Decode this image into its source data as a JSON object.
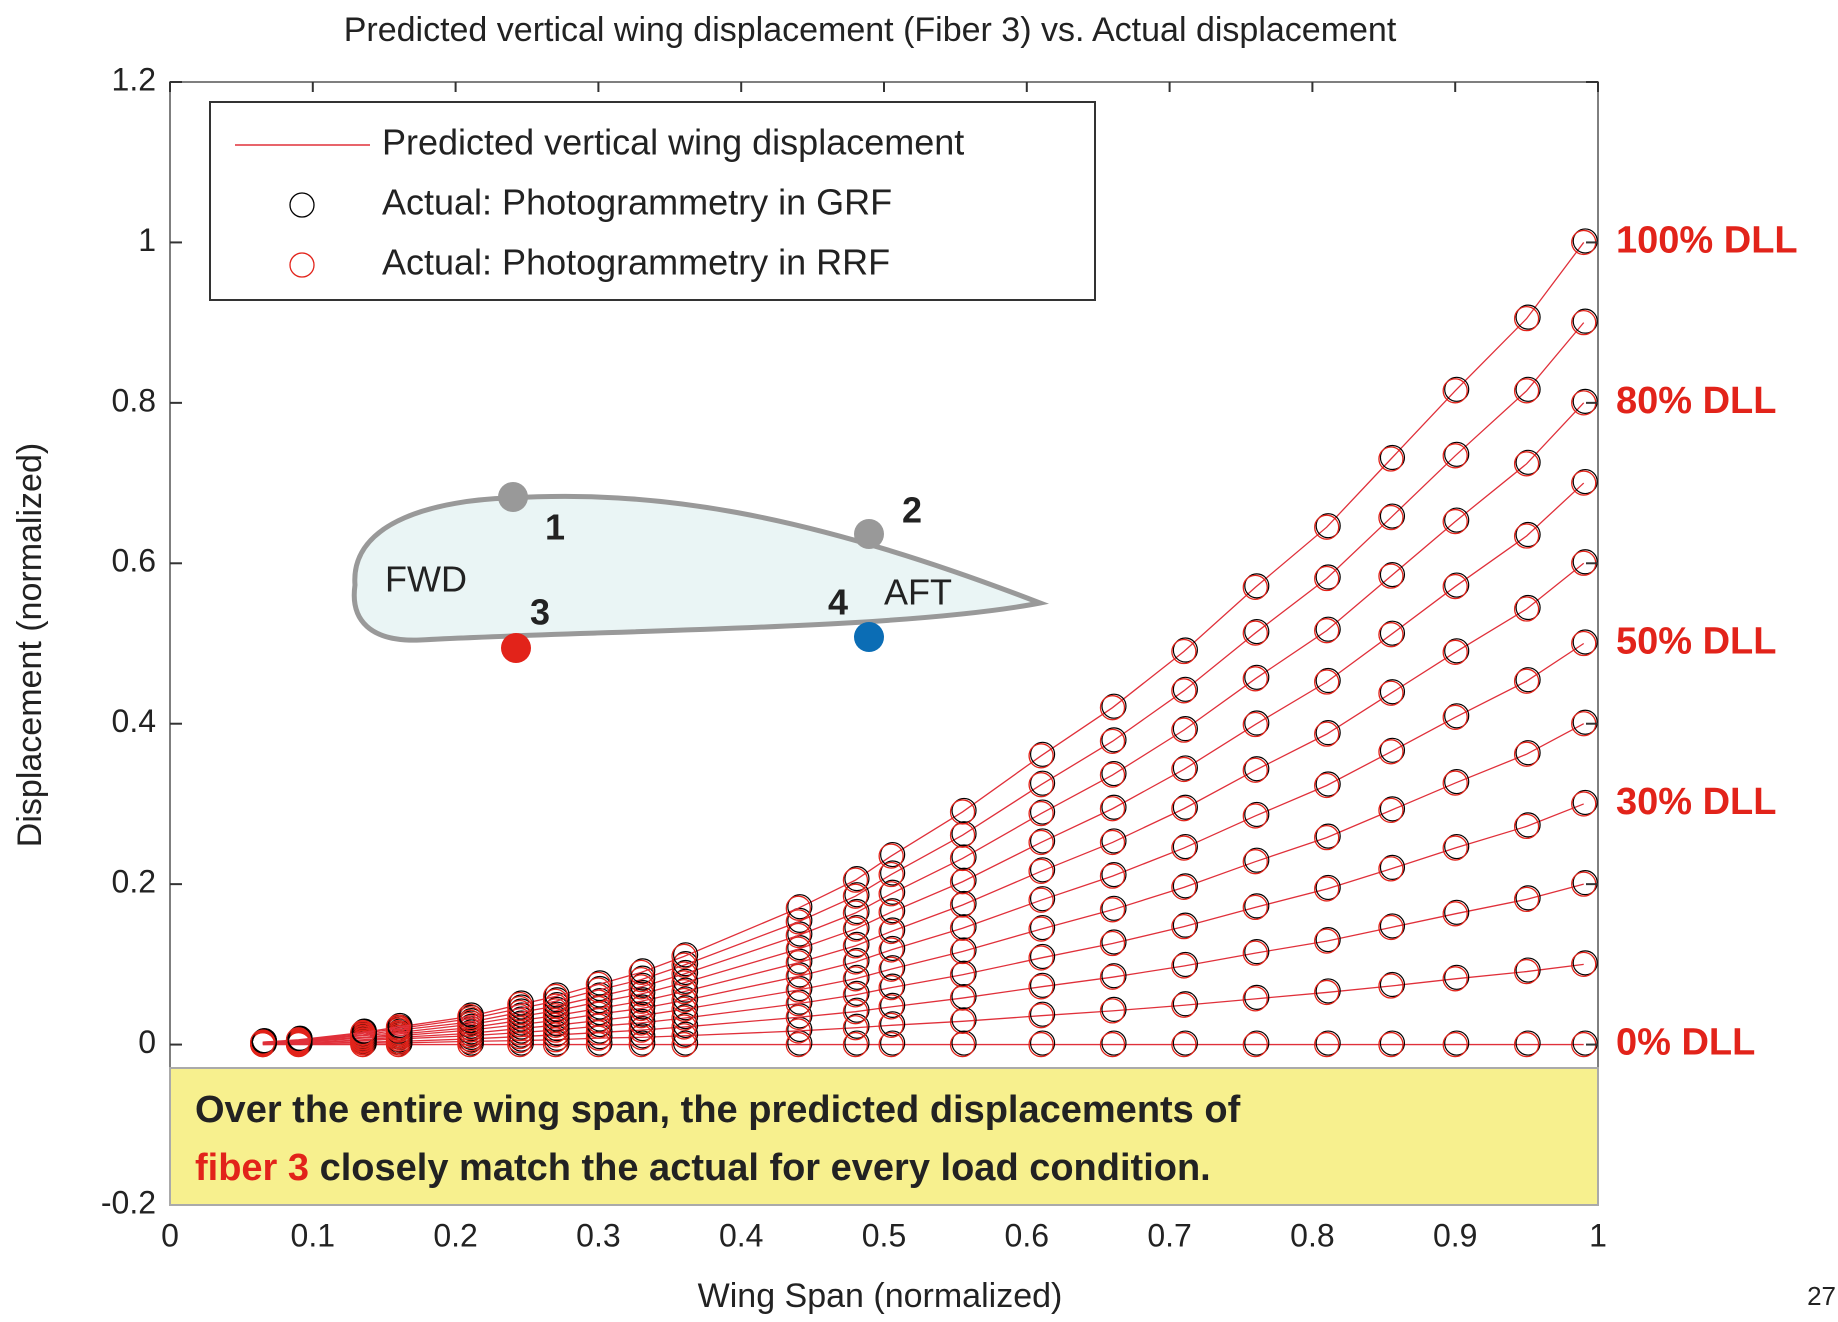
{
  "chart_data": {
    "type": "line",
    "title": "Predicted vertical wing displacement (Fiber 3) vs. Actual displacement",
    "xlabel": "Wing Span (normalized)",
    "ylabel": "Displacement (normalized)",
    "xlim": [
      0,
      1
    ],
    "ylim": [
      -0.2,
      1.2
    ],
    "xticks": [
      0,
      0.1,
      0.2,
      0.3,
      0.4,
      0.5,
      0.6,
      0.7,
      0.8,
      0.9,
      1
    ],
    "yticks": [
      -0.2,
      0,
      0.2,
      0.4,
      0.6,
      0.8,
      1,
      1.2
    ],
    "legend": [
      {
        "name": "Predicted vertical wing displacement",
        "color": "#e0303a",
        "marker": "line"
      },
      {
        "name": "Actual: Photogrammetry in GRF",
        "color": "#000000",
        "marker": "circle"
      },
      {
        "name": "Actual: Photogrammetry in RRF",
        "color": "#e2231a",
        "marker": "circle"
      }
    ],
    "label_color": "#e2231a",
    "x": [
      0.065,
      0.09,
      0.135,
      0.16,
      0.21,
      0.245,
      0.27,
      0.3,
      0.33,
      0.36,
      0.44,
      0.48,
      0.505,
      0.555,
      0.61,
      0.66,
      0.71,
      0.76,
      0.81,
      0.855,
      0.9,
      0.95,
      0.99
    ],
    "series": [
      {
        "label": "0% DLL",
        "values": [
          0,
          0,
          0,
          0,
          0,
          0,
          0,
          0,
          0,
          0,
          0,
          0,
          0,
          0,
          0,
          0,
          0,
          0,
          0,
          0,
          0,
          0,
          0
        ]
      },
      {
        "label": null,
        "values": [
          0,
          0.001,
          0.002,
          0.002,
          0.004,
          0.005,
          0.006,
          0.008,
          0.009,
          0.011,
          0.017,
          0.021,
          0.024,
          0.029,
          0.036,
          0.042,
          0.049,
          0.057,
          0.065,
          0.073,
          0.082,
          0.091,
          0.1
        ]
      },
      {
        "label": null,
        "values": [
          0.001,
          0.001,
          0.003,
          0.004,
          0.007,
          0.01,
          0.012,
          0.015,
          0.018,
          0.022,
          0.034,
          0.041,
          0.047,
          0.058,
          0.072,
          0.084,
          0.098,
          0.114,
          0.129,
          0.146,
          0.163,
          0.181,
          0.2
        ]
      },
      {
        "label": "30% DLL",
        "values": [
          0.001,
          0.002,
          0.005,
          0.007,
          0.011,
          0.015,
          0.018,
          0.023,
          0.027,
          0.033,
          0.051,
          0.062,
          0.071,
          0.087,
          0.108,
          0.126,
          0.147,
          0.171,
          0.194,
          0.219,
          0.245,
          0.272,
          0.3
        ]
      },
      {
        "label": null,
        "values": [
          0.001,
          0.002,
          0.006,
          0.009,
          0.014,
          0.02,
          0.024,
          0.03,
          0.036,
          0.044,
          0.068,
          0.082,
          0.094,
          0.116,
          0.144,
          0.168,
          0.196,
          0.228,
          0.258,
          0.292,
          0.326,
          0.362,
          0.4
        ]
      },
      {
        "label": "50% DLL",
        "values": [
          0.002,
          0.003,
          0.008,
          0.011,
          0.018,
          0.025,
          0.03,
          0.038,
          0.045,
          0.055,
          0.085,
          0.103,
          0.118,
          0.145,
          0.18,
          0.21,
          0.245,
          0.285,
          0.323,
          0.365,
          0.408,
          0.453,
          0.5
        ]
      },
      {
        "label": null,
        "values": [
          0.002,
          0.004,
          0.009,
          0.013,
          0.021,
          0.03,
          0.036,
          0.045,
          0.054,
          0.066,
          0.102,
          0.123,
          0.141,
          0.174,
          0.216,
          0.252,
          0.294,
          0.342,
          0.387,
          0.438,
          0.489,
          0.543,
          0.6
        ]
      },
      {
        "label": null,
        "values": [
          0.002,
          0.004,
          0.011,
          0.015,
          0.025,
          0.035,
          0.042,
          0.053,
          0.063,
          0.077,
          0.119,
          0.144,
          0.165,
          0.203,
          0.252,
          0.294,
          0.343,
          0.399,
          0.452,
          0.511,
          0.571,
          0.634,
          0.7
        ]
      },
      {
        "label": "80% DLL",
        "values": [
          0.002,
          0.005,
          0.012,
          0.018,
          0.028,
          0.04,
          0.048,
          0.06,
          0.072,
          0.088,
          0.136,
          0.164,
          0.188,
          0.232,
          0.288,
          0.336,
          0.392,
          0.456,
          0.516,
          0.584,
          0.652,
          0.724,
          0.8
        ]
      },
      {
        "label": null,
        "values": [
          0.003,
          0.005,
          0.014,
          0.02,
          0.032,
          0.045,
          0.054,
          0.068,
          0.081,
          0.099,
          0.153,
          0.185,
          0.212,
          0.261,
          0.324,
          0.378,
          0.441,
          0.513,
          0.581,
          0.657,
          0.734,
          0.815,
          0.9
        ]
      },
      {
        "label": "100% DLL",
        "values": [
          0.003,
          0.006,
          0.015,
          0.022,
          0.035,
          0.05,
          0.06,
          0.075,
          0.09,
          0.11,
          0.17,
          0.205,
          0.235,
          0.29,
          0.36,
          0.42,
          0.49,
          0.57,
          0.645,
          0.73,
          0.815,
          0.905,
          1.0
        ]
      }
    ],
    "inset": {
      "fwd": "FWD",
      "aft": "AFT",
      "points": [
        "1",
        "2",
        "3",
        "4"
      ]
    },
    "callout": {
      "line1": "Over the entire wing span, the predicted displacements of",
      "highlight": "fiber 3",
      "line2_rest": " closely match the actual for every load condition."
    },
    "page_number": "27"
  }
}
